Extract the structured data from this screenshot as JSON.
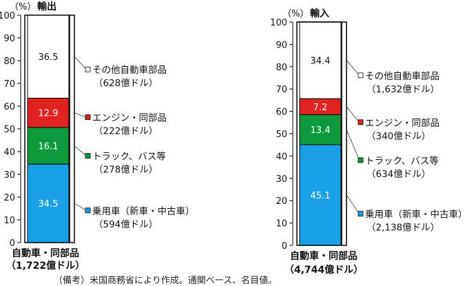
{
  "note": "（備考）米国商務省により作成。通関ベース、名目値。",
  "chart_data": [
    {
      "type": "bar",
      "stacked": true,
      "title": "輸出",
      "unit_label": "（%）",
      "ylim": [
        0,
        100
      ],
      "yticks": [
        "0",
        "10",
        "20",
        "30",
        "40",
        "50",
        "60",
        "70",
        "80",
        "90",
        "100"
      ],
      "categories": [
        "自動車・同部品"
      ],
      "category_sublabel": "（1,722億ドル）",
      "series": [
        {
          "name": "乗用車（新車・中古車）",
          "amount": "（594億ドル）",
          "values": [
            34.5
          ],
          "label": "34.5",
          "color": "#1aa0e6"
        },
        {
          "name": "トラック、バス等",
          "amount": "（278億ドル）",
          "values": [
            16.1
          ],
          "label": "16.1",
          "color": "#0e9a3c"
        },
        {
          "name": "エンジン・同部品",
          "amount": "（222億ドル）",
          "values": [
            12.9
          ],
          "label": "12.9",
          "color": "#e0231f"
        },
        {
          "name": "その他自動車部品",
          "amount": "（628億ドル）",
          "values": [
            36.5
          ],
          "label": "36.5",
          "color": "#ffffff"
        }
      ]
    },
    {
      "type": "bar",
      "stacked": true,
      "title": "輸入",
      "unit_label": "（%）",
      "ylim": [
        0,
        100
      ],
      "yticks": [
        "0",
        "10",
        "20",
        "30",
        "40",
        "50",
        "60",
        "70",
        "80",
        "90",
        "100"
      ],
      "categories": [
        "自動車・同部品"
      ],
      "category_sublabel": "（4,744億ドル）",
      "series": [
        {
          "name": "乗用車（新車・中古車）",
          "amount": "（2,138億ドル）",
          "values": [
            45.1
          ],
          "label": "45.1",
          "color": "#1aa0e6"
        },
        {
          "name": "トラック、バス等",
          "amount": "（634億ドル）",
          "values": [
            13.4
          ],
          "label": "13.4",
          "color": "#0e9a3c"
        },
        {
          "name": "エンジン・同部品",
          "amount": "（340億ドル）",
          "values": [
            7.2
          ],
          "label": "7.2",
          "color": "#e0231f"
        },
        {
          "name": "その他自動車部品",
          "amount": "（1,632億ドル）",
          "values": [
            34.4
          ],
          "label": "34.4",
          "color": "#ffffff"
        }
      ]
    }
  ]
}
